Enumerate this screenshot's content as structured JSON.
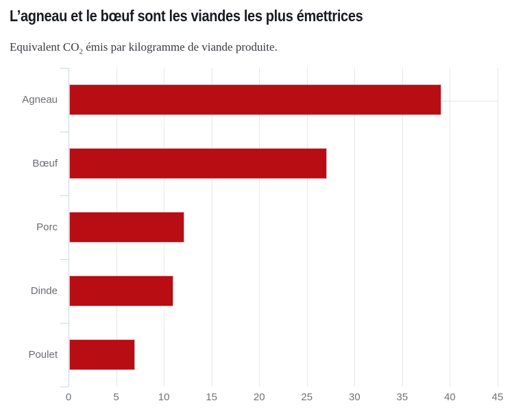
{
  "header": {
    "title": "L’agneau et le bœuf sont les viandes les plus émettrices",
    "subtitle_prefix": "Equivalent CO",
    "subtitle_subscript": "2",
    "subtitle_suffix": " émis par kilogramme de viande produite."
  },
  "chart_data": {
    "type": "bar",
    "orientation": "horizontal",
    "title": "L’agneau et le bœuf sont les viandes les plus émettrices",
    "subtitle": "Equivalent CO2 émis par kilogramme de viande produite.",
    "categories": [
      "Agneau",
      "Bœuf",
      "Porc",
      "Dinde",
      "Poulet"
    ],
    "values": [
      39,
      27,
      12.1,
      10.9,
      6.9
    ],
    "x_ticks": [
      0,
      5,
      10,
      15,
      20,
      25,
      30,
      35,
      40,
      45
    ],
    "xlim": [
      0,
      45
    ],
    "xlabel": "",
    "ylabel": "",
    "grid": true,
    "legend": false,
    "bar_color": "#b70d13",
    "gridline_color": "#e7e7e9",
    "axis_color": "#ccd7e6",
    "label_color": "#696c72"
  }
}
